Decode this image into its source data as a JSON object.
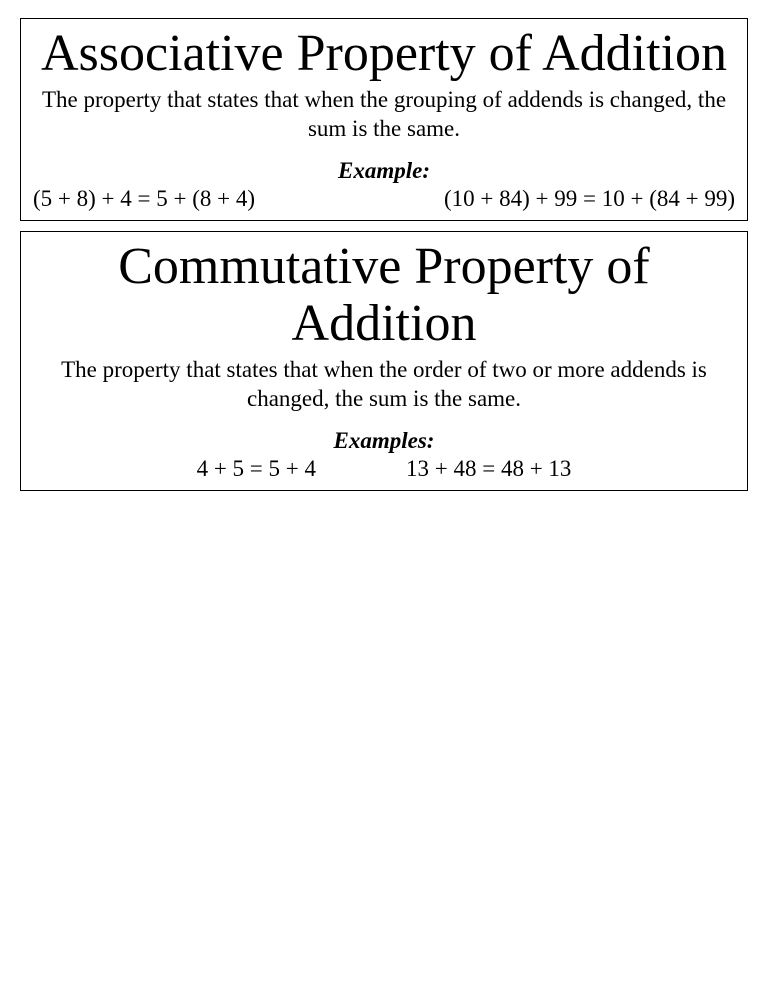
{
  "cards": [
    {
      "title": "Associative Property of Addition",
      "description": "The property that states that when the grouping of addends is changed, the sum is the same.",
      "example_label": "Example:",
      "examples_layout": "wide",
      "example_left": "(5 + 8) + 4 = 5 + (8 + 4)",
      "example_right": "(10 + 84) + 99 = 10 + (84 + 99)"
    },
    {
      "title": "Commutative Property of Addition",
      "description": "The property that states that when the order of two or more addends is changed, the sum is the same.",
      "example_label": "Examples:",
      "examples_layout": "narrow",
      "example_left": "4 + 5 = 5 + 4",
      "example_right": "13 + 48 = 48 + 13"
    }
  ],
  "style": {
    "background_color": "#ffffff",
    "text_color": "#000000",
    "border_color": "#000000",
    "font_family": "Times New Roman",
    "title_fontsize": 52,
    "body_fontsize": 23
  }
}
